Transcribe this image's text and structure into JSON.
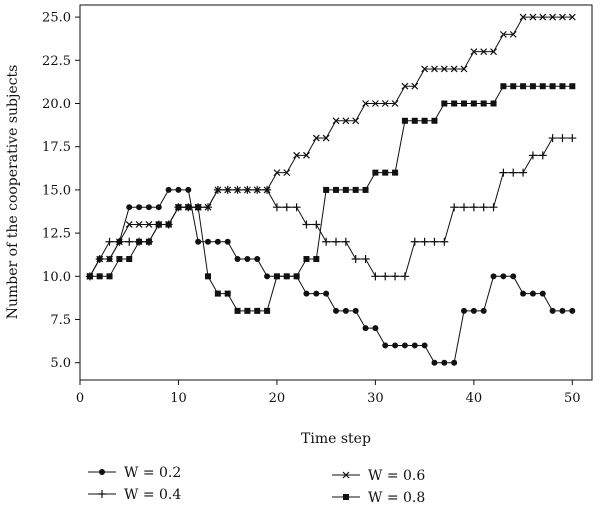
{
  "chart_data": {
    "type": "line",
    "xlabel": "Time step",
    "ylabel": "Number of the cooperative subjects",
    "xlim": [
      0,
      52
    ],
    "ylim": [
      4,
      25.7
    ],
    "x_ticks": [
      0,
      10,
      20,
      30,
      40,
      50
    ],
    "x_tick_labels": [
      "0",
      "10",
      "20",
      "30",
      "40",
      "50"
    ],
    "y_ticks": [
      5.0,
      7.5,
      10.0,
      12.5,
      15.0,
      17.5,
      20.0,
      22.5,
      25.0
    ],
    "y_tick_labels": [
      "5.0",
      "7.5",
      "10.0",
      "12.5",
      "15.0",
      "17.5",
      "20.0",
      "22.5",
      "25.0"
    ],
    "grid": false,
    "legend_position": "bottom",
    "x": [
      1,
      2,
      3,
      4,
      5,
      6,
      7,
      8,
      9,
      10,
      11,
      12,
      13,
      14,
      15,
      16,
      17,
      18,
      19,
      20,
      21,
      22,
      23,
      24,
      25,
      26,
      27,
      28,
      29,
      30,
      31,
      32,
      33,
      34,
      35,
      36,
      37,
      38,
      39,
      40,
      41,
      42,
      43,
      44,
      45,
      46,
      47,
      48,
      49,
      50
    ],
    "series": [
      {
        "name": "W = 0.2",
        "marker": "circle",
        "values": [
          10,
          11,
          11,
          12,
          14,
          14,
          14,
          14,
          15,
          15,
          15,
          12,
          12,
          12,
          12,
          11,
          11,
          11,
          10,
          10,
          10,
          10,
          9,
          9,
          9,
          8,
          8,
          8,
          7,
          7,
          6,
          6,
          6,
          6,
          6,
          5,
          5,
          5,
          8,
          8,
          8,
          10,
          10,
          10,
          9,
          9,
          9,
          8,
          8,
          8
        ]
      },
      {
        "name": "W = 0.4",
        "marker": "plus",
        "values": [
          10,
          11,
          12,
          12,
          12,
          12,
          12,
          13,
          13,
          14,
          14,
          14,
          14,
          15,
          15,
          15,
          15,
          15,
          15,
          14,
          14,
          14,
          13,
          13,
          12,
          12,
          12,
          11,
          11,
          10,
          10,
          10,
          10,
          12,
          12,
          12,
          12,
          14,
          14,
          14,
          14,
          14,
          16,
          16,
          16,
          17,
          17,
          18,
          18,
          18
        ]
      },
      {
        "name": "W = 0.6",
        "marker": "x",
        "values": [
          10,
          11,
          11,
          12,
          13,
          13,
          13,
          13,
          13,
          14,
          14,
          14,
          14,
          15,
          15,
          15,
          15,
          15,
          15,
          16,
          16,
          17,
          17,
          18,
          18,
          19,
          19,
          19,
          20,
          20,
          20,
          20,
          21,
          21,
          22,
          22,
          22,
          22,
          22,
          23,
          23,
          23,
          24,
          24,
          25,
          25,
          25,
          25,
          25,
          25
        ]
      },
      {
        "name": "W = 0.8",
        "marker": "square",
        "values": [
          10,
          10,
          10,
          11,
          11,
          12,
          12,
          13,
          13,
          14,
          14,
          14,
          10,
          9,
          9,
          8,
          8,
          8,
          8,
          10,
          10,
          10,
          11,
          11,
          15,
          15,
          15,
          15,
          15,
          16,
          16,
          16,
          19,
          19,
          19,
          19,
          20,
          20,
          20,
          20,
          20,
          20,
          21,
          21,
          21,
          21,
          21,
          21,
          21,
          21
        ]
      }
    ]
  }
}
